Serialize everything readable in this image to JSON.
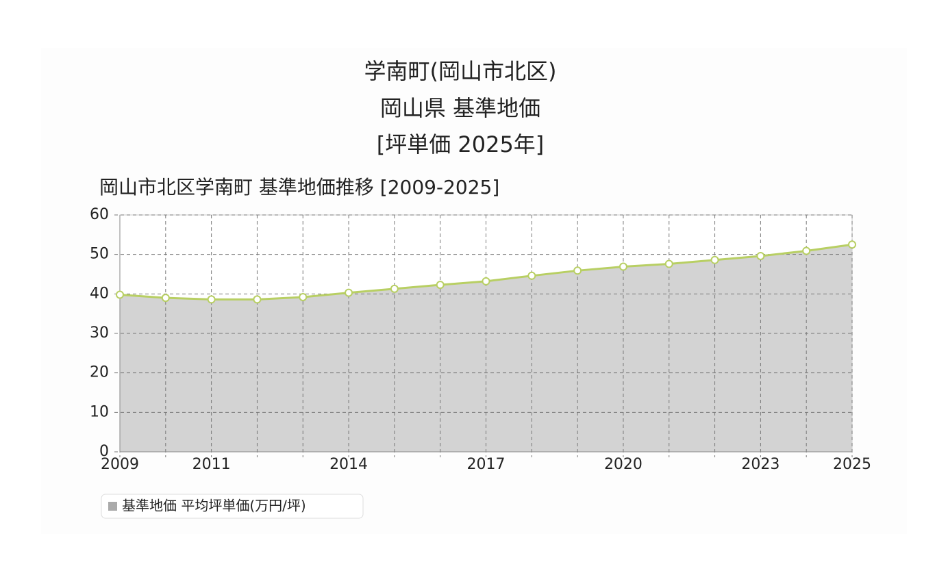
{
  "chart_data": {
    "type": "area",
    "title": [
      "学南町(岡山市北区)",
      "岡山県 基準地価",
      "[坪単価 2025年]"
    ],
    "subtitle": "岡山市北区学南町 基準地価推移 [2009-2025]",
    "x": [
      2009,
      2010,
      2011,
      2012,
      2013,
      2014,
      2015,
      2016,
      2017,
      2018,
      2019,
      2020,
      2021,
      2022,
      2023,
      2024,
      2025
    ],
    "series": [
      {
        "name": "基準地価 平均坪単価(万円/坪)",
        "color": "#b8cf63",
        "fill": "#d3d3d3",
        "values": [
          39.8,
          39.0,
          38.6,
          38.6,
          39.2,
          40.3,
          41.3,
          42.3,
          43.2,
          44.6,
          45.9,
          46.9,
          47.6,
          48.6,
          49.6,
          50.9,
          52.5
        ]
      }
    ],
    "xlim": [
      2009,
      2025
    ],
    "xticks": [
      2009,
      2011,
      2014,
      2017,
      2020,
      2023,
      2025
    ],
    "ylim": [
      0,
      60
    ],
    "yticks": [
      0,
      10,
      20,
      30,
      40,
      50,
      60
    ],
    "grid": true
  }
}
